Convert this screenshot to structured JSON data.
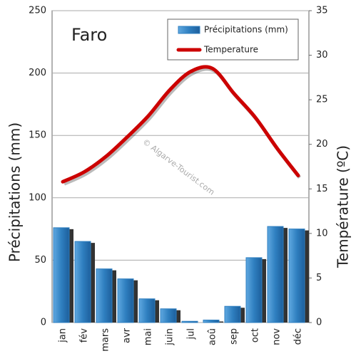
{
  "chart_data": {
    "type": "bar-line",
    "title": "Faro",
    "watermark": "© Algarve-Tourist.com",
    "categories": [
      "jan",
      "fév",
      "mars",
      "avr",
      "mai",
      "juin",
      "jul",
      "aoû",
      "sep",
      "oct",
      "nov",
      "déc"
    ],
    "series": [
      {
        "name": "Précipitations (mm)",
        "type": "bar",
        "color": "#2f7fc0",
        "values": [
          76,
          65,
          43,
          35,
          19,
          11,
          1,
          2,
          13,
          52,
          77,
          75
        ]
      },
      {
        "name": "Temperature",
        "type": "line",
        "axis": "y2",
        "color": "#cc0000",
        "values": [
          15.8,
          16.9,
          18.6,
          20.8,
          23.2,
          26.1,
          28.2,
          28.5,
          25.7,
          23.0,
          19.6,
          16.5
        ]
      }
    ],
    "ylabel": "Précipitations (mm)",
    "y2label": "Température (ºC)",
    "ylim": [
      0,
      250
    ],
    "yticks": [
      0,
      50,
      100,
      150,
      200,
      250
    ],
    "y2lim": [
      0,
      35
    ],
    "y2ticks": [
      0,
      5,
      10,
      15,
      20,
      25,
      30,
      35
    ],
    "grid": true,
    "legend": "top-right"
  }
}
